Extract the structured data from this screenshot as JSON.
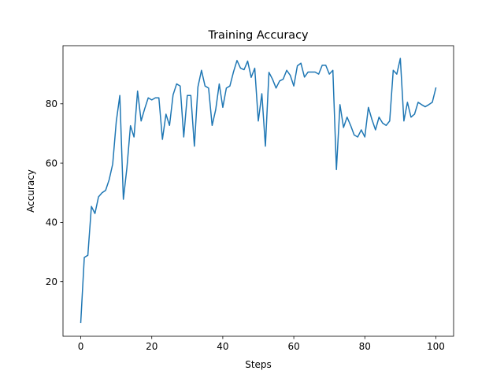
{
  "chart_data": {
    "type": "line",
    "title": "Training Accuracy",
    "xlabel": "Steps",
    "ylabel": "Accuracy",
    "xlim": [
      -5,
      105
    ],
    "ylim": [
      1.6,
      99.6
    ],
    "xticks": [
      0,
      20,
      40,
      60,
      80,
      100
    ],
    "yticks": [
      20,
      40,
      60,
      80
    ],
    "grid": false,
    "legend": "none",
    "series": [
      {
        "color": "#1f77b4",
        "x": [
          0,
          1,
          2,
          3,
          4,
          5,
          6,
          7,
          8,
          9,
          10,
          11,
          12,
          13,
          14,
          15,
          16,
          17,
          18,
          19,
          20,
          21,
          22,
          23,
          24,
          25,
          26,
          27,
          28,
          29,
          30,
          31,
          32,
          33,
          34,
          35,
          36,
          37,
          38,
          39,
          40,
          41,
          42,
          43,
          44,
          45,
          46,
          47,
          48,
          49,
          50,
          51,
          52,
          53,
          54,
          55,
          56,
          57,
          58,
          59,
          60,
          61,
          62,
          63,
          64,
          65,
          66,
          67,
          68,
          69,
          70,
          71,
          72,
          73,
          74,
          75,
          76,
          77,
          78,
          79,
          80,
          81,
          82,
          83,
          84,
          85,
          86,
          87,
          88,
          89,
          90,
          91,
          92,
          93,
          94,
          95,
          96,
          97,
          98,
          99,
          100
        ],
        "values": [
          6.3,
          28.2,
          28.9,
          45.4,
          43.0,
          48.6,
          50.0,
          50.8,
          54.4,
          59.7,
          74.0,
          82.8,
          47.8,
          58.4,
          72.6,
          68.8,
          84.3,
          74.2,
          78.3,
          82.0,
          81.3,
          82.0,
          82.0,
          68.0,
          76.5,
          72.7,
          83.0,
          86.7,
          86.0,
          68.8,
          82.8,
          82.8,
          65.7,
          85.7,
          91.3,
          86.0,
          85.3,
          72.7,
          78.0,
          86.7,
          78.8,
          85.3,
          86.0,
          90.7,
          94.6,
          92.0,
          91.5,
          94.4,
          88.9,
          92.0,
          74.2,
          83.4,
          65.7,
          90.6,
          88.3,
          85.3,
          87.7,
          88.3,
          91.3,
          89.6,
          86.0,
          92.8,
          93.7,
          89.0,
          90.7,
          90.7,
          90.7,
          90.0,
          93.0,
          93.0,
          90.0,
          91.3,
          57.8,
          79.7,
          72.0,
          75.5,
          72.7,
          69.5,
          68.8,
          71.2,
          68.8,
          78.8,
          74.7,
          71.2,
          75.5,
          73.5,
          72.7,
          74.2,
          91.3,
          90.0,
          95.3,
          74.2,
          80.5,
          75.5,
          76.5,
          80.5,
          79.7,
          79.0,
          79.7,
          80.5,
          85.3
        ]
      }
    ]
  }
}
